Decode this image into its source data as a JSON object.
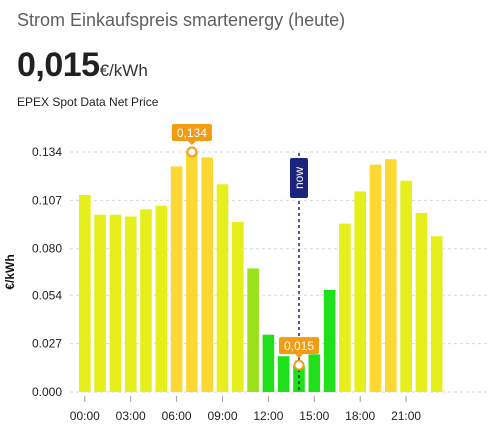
{
  "card": {
    "title": "Strom Einkaufspreis smartenergy (heute)",
    "current_value": "0,015",
    "current_unit": "€/kWh",
    "subtitle": "EPEX Spot Data Net Price"
  },
  "now_label": "now",
  "colors": {
    "high": "#fdd835",
    "mid": "#e6ee1c",
    "lowmid": "#9be117",
    "low": "#1fe01a",
    "annotation": "#f39c12",
    "now_line": "#1a237e",
    "grid": "#d9d9d9"
  },
  "chart_data": {
    "type": "bar",
    "title": "",
    "xlabel": "",
    "ylabel": "€/kWh",
    "ylim": [
      0,
      0.134
    ],
    "yticks": [
      0.0,
      0.027,
      0.054,
      0.08,
      0.107,
      0.134
    ],
    "ytick_labels": [
      "0.000",
      "0.027",
      "0.054",
      "0.080",
      "0.107",
      "0.134"
    ],
    "x_tick_labels": [
      "00:00",
      "03:00",
      "06:00",
      "09:00",
      "12:00",
      "15:00",
      "18:00",
      "21:00"
    ],
    "x_tick_hours": [
      0,
      3,
      6,
      9,
      12,
      15,
      18,
      21
    ],
    "hours": [
      0,
      1,
      2,
      3,
      4,
      5,
      6,
      7,
      8,
      9,
      10,
      11,
      12,
      13,
      14,
      15,
      16,
      17,
      18,
      19,
      20,
      21,
      22,
      23
    ],
    "values": [
      0.11,
      0.099,
      0.099,
      0.098,
      0.102,
      0.104,
      0.126,
      0.134,
      0.131,
      0.116,
      0.095,
      0.069,
      0.032,
      0.02,
      0.015,
      0.021,
      0.057,
      0.094,
      0.112,
      0.127,
      0.13,
      0.118,
      0.1,
      0.087
    ],
    "bar_color_keys": [
      "mid",
      "mid",
      "mid",
      "mid",
      "mid",
      "mid",
      "high",
      "high",
      "high",
      "mid",
      "mid",
      "lowmid",
      "low",
      "low",
      "low",
      "low",
      "low",
      "mid",
      "mid",
      "high",
      "high",
      "mid",
      "mid",
      "mid"
    ],
    "max_point": {
      "hour": 7,
      "value": 0.134,
      "label": "0,134"
    },
    "current_point": {
      "hour": 14,
      "value": 0.015,
      "label": "0,015"
    },
    "now_hour": 14,
    "grid": true,
    "legend": "none"
  }
}
